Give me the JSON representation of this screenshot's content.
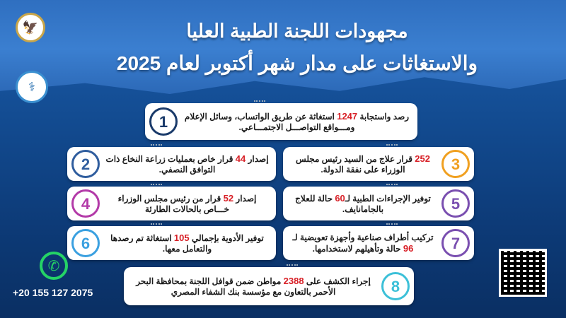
{
  "title": {
    "line1": "مجهودات اللجنة الطبية العليا",
    "line2": "والاستغاثات على مدار شهر أكتوبر لعام 2025"
  },
  "contact": {
    "phone": "+20 155 127 2075",
    "icon": "whatsapp-icon"
  },
  "items": [
    {
      "n": "1",
      "color": "#1a3a6a",
      "pre": "رصد واستجابة ",
      "num": "1247",
      "post": " استغاثة عن طريق الواتساب، وسائل الإعلام ومـــواقع التواصـــل الاجتمـــاعي."
    },
    {
      "n": "2",
      "color": "#2f5d9e",
      "pre": "إصدار ",
      "num": "44",
      "post": " قرار خاص بعمليات زراعة النخاع ذات التوافق النصفي."
    },
    {
      "n": "3",
      "color": "#f0a020",
      "pre": "",
      "num": "252",
      "post": " قرار علاج من السيد رئيس مجلس الوزراء على نفقة الدولة."
    },
    {
      "n": "4",
      "color": "#b33aa8",
      "pre": "إصدار ",
      "num": "52",
      "post": " قرار من رئيس مجلس الوزراء خـــاص بالحالات الطارئة"
    },
    {
      "n": "5",
      "color": "#7a4fb0",
      "pre": "توفير الإجراءات الطبية لـ",
      "num": "60",
      "post": " حالة للعلاج بالجامانايف."
    },
    {
      "n": "6",
      "color": "#3aa0e0",
      "pre": "توفير الأدوية بإجمالي ",
      "num": "105",
      "post": " استغاثة تم رصدها والتعامل معها."
    },
    {
      "n": "7",
      "color": "#7a4fb0",
      "pre": "تركيب أطراف صناعية وأجهزة تعويضية لـ ",
      "num": "96",
      "post": " حالة وتأهيلهم لاستخدامها."
    },
    {
      "n": "8",
      "color": "#3cc0d8",
      "pre": "إجراء الكشف على ",
      "num": "2388",
      "post": " مواطن ضمن قوافل اللجنة بمحافظة البحر الأحمر بالتعاون مع مؤسسة بنك الشفاء المصري"
    }
  ]
}
